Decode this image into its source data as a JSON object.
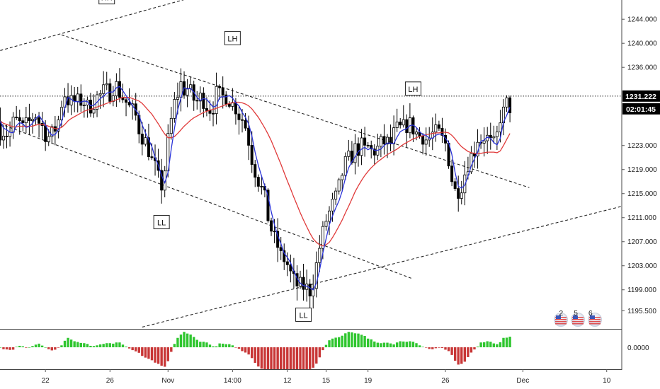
{
  "chart_data": {
    "type": "candlestick",
    "symbol_bias": "",
    "y_axis": {
      "ylim": [
        1192.5,
        1247.2
      ],
      "ticks": [
        "1244.000",
        "1240.000",
        "1236.000",
        "1223.000",
        "1219.000",
        "1215.000",
        "1211.000",
        "1207.000",
        "1203.000",
        "1199.000",
        "1195.500"
      ],
      "tick_values": [
        1244.0,
        1240.0,
        1236.0,
        1223.0,
        1219.0,
        1215.0,
        1211.0,
        1207.0,
        1203.0,
        1199.0,
        1195.5
      ],
      "grid": false
    },
    "x_axis": {
      "ticks": [
        "22",
        "26",
        "Nov",
        "14:00",
        "12",
        "15",
        "19",
        "26",
        "Dec",
        "10"
      ],
      "tick_bars": [
        14,
        34,
        52,
        72,
        89,
        101,
        114,
        138,
        162,
        188
      ]
    },
    "price_label": {
      "value": "1231.222",
      "countdown": "02:01:45",
      "level": 1231.222
    },
    "annotations": [
      {
        "text": "HH",
        "bar": 33,
        "price": 1247.6
      },
      {
        "text": "LH",
        "bar": 72,
        "price": 1240.8
      },
      {
        "text": "LL",
        "bar": 50,
        "price": 1210.2
      },
      {
        "text": "LL",
        "bar": 94,
        "price": 1194.8
      },
      {
        "text": "LH",
        "bar": 128,
        "price": 1232.4
      }
    ],
    "trendlines": [
      {
        "from": [
          0,
          1238.8
        ],
        "to": [
          66,
          1248.6
        ]
      },
      {
        "from": [
          19,
          1241.4
        ],
        "to": [
          164,
          1216.0
        ]
      },
      {
        "from": [
          0,
          1226.6
        ],
        "to": [
          128,
          1200.8
        ]
      },
      {
        "from": [
          44,
          1192.8
        ],
        "to": [
          195,
          1213.2
        ]
      }
    ],
    "blue_ma": [
      1227.0,
      1225.9,
      1225.6,
      1225.2,
      1225.1,
      1226.3,
      1226.8,
      1226.6,
      1226.0,
      1226.2,
      1226.7,
      1227.5,
      1228.0,
      1227.2,
      1226.4,
      1225.4,
      1224.7,
      1224.8,
      1225.6,
      1226.8,
      1229.2,
      1231.0,
      1230.7,
      1230.3,
      1230.3,
      1230.2,
      1230.4,
      1230.3,
      1229.6,
      1229.7,
      1230.2,
      1230.8,
      1231.2,
      1231.7,
      1231.9,
      1231.9,
      1232.6,
      1232.8,
      1232.1,
      1231.3,
      1230.5,
      1229.6,
      1228.9,
      1228.1,
      1226.4,
      1225.1,
      1224.0,
      1222.8,
      1221.0,
      1219.7,
      1218.0,
      1216.8,
      1218.5,
      1222.4,
      1225.9,
      1228.9,
      1230.9,
      1232.6,
      1232.4,
      1232.5,
      1231.9,
      1231.0,
      1230.5,
      1230.8,
      1230.7,
      1230.0,
      1229.4,
      1229.6,
      1231.0,
      1231.1,
      1231.1,
      1231.3,
      1230.9,
      1230.1,
      1229.6,
      1228.5,
      1227.7,
      1226.6,
      1224.6,
      1221.9,
      1219.7,
      1217.9,
      1216.3,
      1214.6,
      1212.0,
      1209.8,
      1208.0,
      1206.7,
      1205.1,
      1204.4,
      1203.5,
      1202.1,
      1200.9,
      1200.1,
      1199.7,
      1199.6,
      1199.3,
      1199.0,
      1200.1,
      1202.3,
      1205.1,
      1207.5,
      1209.8,
      1211.3,
      1212.6,
      1213.8,
      1215.4,
      1217.6,
      1219.3,
      1220.3,
      1221.1,
      1222.0,
      1222.4,
      1222.7,
      1222.3,
      1222.6,
      1222.2,
      1222.2,
      1222.4,
      1223.0,
      1223.4,
      1223.4,
      1223.3,
      1224.4,
      1225.3,
      1225.6,
      1225.8,
      1226.3,
      1226.4,
      1226.0,
      1225.3,
      1224.8,
      1224.7,
      1224.2,
      1224.2,
      1224.7,
      1224.9,
      1224.9,
      1224.2,
      1223.5,
      1221.5,
      1218.5,
      1216.2,
      1215.9,
      1216.4,
      1217.9,
      1219.6,
      1220.8,
      1221.9,
      1223.7,
      1223.9,
      1224.4,
      1224.2,
      1223.5,
      1223.1,
      1224.2,
      1226.9,
      1228.0,
      1229.4
    ],
    "red_ma": [
      1227.0,
      1226.7,
      1226.5,
      1226.3,
      1226.1,
      1226.1,
      1226.2,
      1226.2,
      1226.2,
      1226.2,
      1226.2,
      1226.4,
      1226.5,
      1226.5,
      1226.4,
      1226.2,
      1226.0,
      1225.8,
      1225.8,
      1226.0,
      1226.5,
      1227.1,
      1227.5,
      1227.8,
      1228.1,
      1228.4,
      1228.7,
      1228.9,
      1229.0,
      1229.2,
      1229.4,
      1229.6,
      1229.8,
      1230.0,
      1230.2,
      1230.4,
      1230.6,
      1230.8,
      1231.0,
      1231.0,
      1231.0,
      1230.8,
      1230.6,
      1230.4,
      1230.0,
      1229.4,
      1228.8,
      1228.2,
      1227.4,
      1226.6,
      1225.7,
      1224.9,
      1224.3,
      1224.3,
      1224.5,
      1225.0,
      1225.6,
      1226.2,
      1226.7,
      1227.2,
      1227.6,
      1227.9,
      1228.2,
      1228.5,
      1228.7,
      1228.9,
      1229.0,
      1229.2,
      1229.4,
      1229.6,
      1229.8,
      1230.0,
      1230.1,
      1230.2,
      1230.2,
      1230.1,
      1229.9,
      1229.6,
      1229.1,
      1228.4,
      1227.7,
      1226.8,
      1225.9,
      1224.9,
      1223.8,
      1222.5,
      1221.2,
      1219.9,
      1218.5,
      1217.1,
      1215.8,
      1214.4,
      1213.1,
      1211.8,
      1210.6,
      1209.5,
      1208.4,
      1207.5,
      1206.9,
      1206.5,
      1206.3,
      1206.5,
      1206.9,
      1207.7,
      1208.6,
      1209.6,
      1210.6,
      1211.8,
      1212.9,
      1214.1,
      1215.3,
      1216.3,
      1217.2,
      1218.0,
      1218.7,
      1219.3,
      1219.8,
      1220.3,
      1220.7,
      1221.1,
      1221.5,
      1221.8,
      1222.1,
      1222.4,
      1222.8,
      1223.2,
      1223.5,
      1223.8,
      1224.1,
      1224.3,
      1224.5,
      1224.6,
      1224.8,
      1224.9,
      1225.0,
      1225.1,
      1225.1,
      1225.2,
      1225.2,
      1225.1,
      1224.7,
      1224.1,
      1223.4,
      1222.8,
      1222.4,
      1222.0,
      1221.8,
      1221.7,
      1221.6,
      1221.7,
      1221.8,
      1221.9,
      1221.9,
      1221.9,
      1221.8,
      1222.1,
      1223.0,
      1224.0,
      1225.0
    ]
  },
  "oscillator": {
    "zero_label": "0.0000"
  },
  "flags": {
    "text": "2 5 6",
    "digits": [
      "2",
      "5",
      "6"
    ]
  },
  "colors": {
    "candle": "#000000",
    "blue_ma": "#2a33d8",
    "red_ma": "#e03a3a",
    "hist_up": "#2fc62f",
    "hist_down": "#c83636",
    "axis": "#555555"
  }
}
